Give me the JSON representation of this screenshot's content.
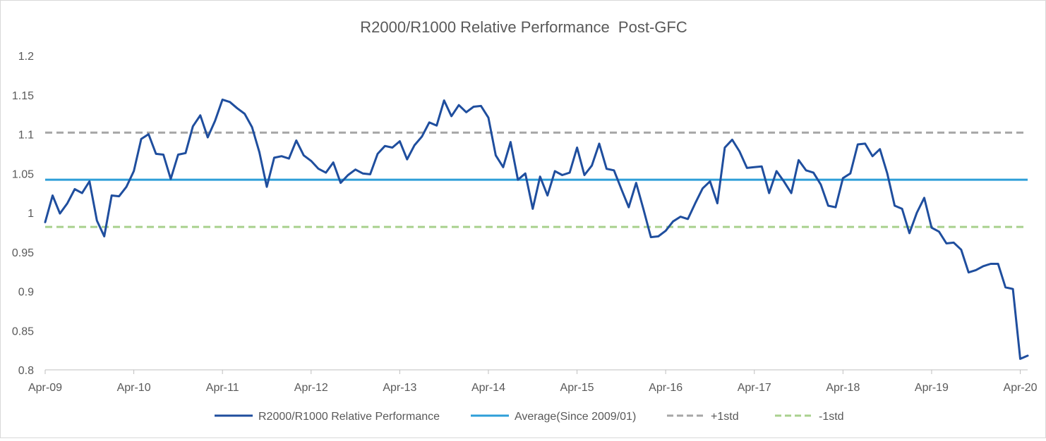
{
  "chart_data": {
    "type": "line",
    "title": "R2000/R1000 Relative Performance  Post-GFC",
    "xlabel": "",
    "ylabel": "",
    "ylim": [
      0.8,
      1.2
    ],
    "yticks": [
      "0.8",
      "0.85",
      "0.9",
      "0.95",
      "1",
      "1.05",
      "1.1",
      "1.15",
      "1.2"
    ],
    "xticks": [
      "Apr-09",
      "Apr-10",
      "Apr-11",
      "Apr-12",
      "Apr-13",
      "Apr-14",
      "Apr-15",
      "Apr-16",
      "Apr-17",
      "Apr-18",
      "Apr-19",
      "Apr-20"
    ],
    "grid": false,
    "legend_position": "bottom",
    "colors": {
      "relative": "#1f4e9e",
      "average": "#2e9fd8",
      "plus1std": "#a6a6a6",
      "minus1std": "#a9d18e",
      "axis": "#bfbfbf",
      "text": "#595959"
    },
    "series": [
      {
        "name": "R2000/R1000 Relative Performance",
        "style": "solid",
        "points": [
          [
            "2009-04",
            0.988
          ],
          [
            "2009-05",
            1.022
          ],
          [
            "2009-06",
            0.999
          ],
          [
            "2009-07",
            1.012
          ],
          [
            "2009-08",
            1.03
          ],
          [
            "2009-09",
            1.025
          ],
          [
            "2009-10",
            1.04
          ],
          [
            "2009-11",
            0.99
          ],
          [
            "2009-12",
            0.97
          ],
          [
            "2010-01",
            1.022
          ],
          [
            "2010-02",
            1.021
          ],
          [
            "2010-03",
            1.033
          ],
          [
            "2010-04",
            1.053
          ],
          [
            "2010-05",
            1.094
          ],
          [
            "2010-06",
            1.1
          ],
          [
            "2010-07",
            1.075
          ],
          [
            "2010-08",
            1.074
          ],
          [
            "2010-09",
            1.043
          ],
          [
            "2010-10",
            1.074
          ],
          [
            "2010-11",
            1.076
          ],
          [
            "2010-12",
            1.11
          ],
          [
            "2011-01",
            1.124
          ],
          [
            "2011-02",
            1.096
          ],
          [
            "2011-03",
            1.117
          ],
          [
            "2011-04",
            1.144
          ],
          [
            "2011-05",
            1.141
          ],
          [
            "2011-06",
            1.133
          ],
          [
            "2011-07",
            1.126
          ],
          [
            "2011-08",
            1.109
          ],
          [
            "2011-09",
            1.077
          ],
          [
            "2011-10",
            1.033
          ],
          [
            "2011-11",
            1.07
          ],
          [
            "2011-12",
            1.072
          ],
          [
            "2012-01",
            1.069
          ],
          [
            "2012-02",
            1.092
          ],
          [
            "2012-03",
            1.073
          ],
          [
            "2012-04",
            1.066
          ],
          [
            "2012-05",
            1.056
          ],
          [
            "2012-06",
            1.051
          ],
          [
            "2012-07",
            1.064
          ],
          [
            "2012-08",
            1.038
          ],
          [
            "2012-09",
            1.048
          ],
          [
            "2012-10",
            1.055
          ],
          [
            "2012-11",
            1.05
          ],
          [
            "2012-12",
            1.049
          ],
          [
            "2013-01",
            1.075
          ],
          [
            "2013-02",
            1.085
          ],
          [
            "2013-03",
            1.083
          ],
          [
            "2013-04",
            1.091
          ],
          [
            "2013-05",
            1.068
          ],
          [
            "2013-06",
            1.086
          ],
          [
            "2013-07",
            1.097
          ],
          [
            "2013-08",
            1.115
          ],
          [
            "2013-09",
            1.111
          ],
          [
            "2013-10",
            1.143
          ],
          [
            "2013-11",
            1.123
          ],
          [
            "2013-12",
            1.137
          ],
          [
            "2014-01",
            1.128
          ],
          [
            "2014-02",
            1.135
          ],
          [
            "2014-03",
            1.136
          ],
          [
            "2014-04",
            1.121
          ],
          [
            "2014-05",
            1.073
          ],
          [
            "2014-06",
            1.058
          ],
          [
            "2014-07",
            1.09
          ],
          [
            "2014-08",
            1.042
          ],
          [
            "2014-09",
            1.05
          ],
          [
            "2014-10",
            1.005
          ],
          [
            "2014-11",
            1.046
          ],
          [
            "2014-12",
            1.022
          ],
          [
            "2015-01",
            1.053
          ],
          [
            "2015-02",
            1.048
          ],
          [
            "2015-03",
            1.051
          ],
          [
            "2015-04",
            1.083
          ],
          [
            "2015-05",
            1.048
          ],
          [
            "2015-06",
            1.06
          ],
          [
            "2015-07",
            1.088
          ],
          [
            "2015-08",
            1.056
          ],
          [
            "2015-09",
            1.054
          ],
          [
            "2015-10",
            1.03
          ],
          [
            "2015-11",
            1.007
          ],
          [
            "2015-12",
            1.038
          ],
          [
            "2016-01",
            1.004
          ],
          [
            "2016-02",
            0.969
          ],
          [
            "2016-03",
            0.97
          ],
          [
            "2016-04",
            0.977
          ],
          [
            "2016-05",
            0.989
          ],
          [
            "2016-06",
            0.995
          ],
          [
            "2016-07",
            0.992
          ],
          [
            "2016-08",
            1.012
          ],
          [
            "2016-09",
            1.031
          ],
          [
            "2016-10",
            1.04
          ],
          [
            "2016-11",
            1.012
          ],
          [
            "2016-12",
            1.083
          ],
          [
            "2017-01",
            1.093
          ],
          [
            "2017-02",
            1.078
          ],
          [
            "2017-03",
            1.057
          ],
          [
            "2017-04",
            1.058
          ],
          [
            "2017-05",
            1.059
          ],
          [
            "2017-06",
            1.025
          ],
          [
            "2017-07",
            1.053
          ],
          [
            "2017-08",
            1.04
          ],
          [
            "2017-09",
            1.025
          ],
          [
            "2017-10",
            1.067
          ],
          [
            "2017-11",
            1.054
          ],
          [
            "2017-12",
            1.051
          ],
          [
            "2018-01",
            1.036
          ],
          [
            "2018-02",
            1.009
          ],
          [
            "2018-03",
            1.007
          ],
          [
            "2018-04",
            1.044
          ],
          [
            "2018-05",
            1.05
          ],
          [
            "2018-06",
            1.087
          ],
          [
            "2018-07",
            1.088
          ],
          [
            "2018-08",
            1.072
          ],
          [
            "2018-09",
            1.081
          ],
          [
            "2018-10",
            1.05
          ],
          [
            "2018-11",
            1.009
          ],
          [
            "2018-12",
            1.005
          ],
          [
            "2019-01",
            0.974
          ],
          [
            "2019-02",
            1.0
          ],
          [
            "2019-03",
            1.019
          ],
          [
            "2019-04",
            0.981
          ],
          [
            "2019-05",
            0.976
          ],
          [
            "2019-06",
            0.961
          ],
          [
            "2019-07",
            0.962
          ],
          [
            "2019-08",
            0.953
          ],
          [
            "2019-09",
            0.924
          ],
          [
            "2019-10",
            0.927
          ],
          [
            "2019-11",
            0.932
          ],
          [
            "2019-12",
            0.935
          ],
          [
            "2020-01",
            0.935
          ],
          [
            "2020-02",
            0.905
          ],
          [
            "2020-03",
            0.903
          ],
          [
            "2020-04",
            0.814
          ],
          [
            "2020-05",
            0.818
          ]
        ]
      },
      {
        "name": "Average(Since 2009/01)",
        "style": "solid",
        "value": 1.042
      },
      {
        "name": "+1std",
        "style": "dashed",
        "value": 1.102
      },
      {
        "name": "-1std",
        "style": "dashed",
        "value": 0.982
      }
    ]
  }
}
